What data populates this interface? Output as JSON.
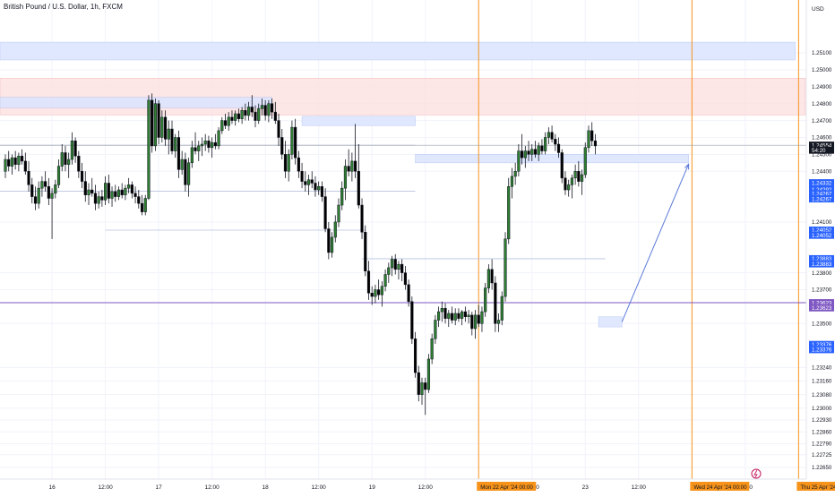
{
  "title": "British Pound / U.S. Dollar, 1h, FXCM",
  "currency": "USD",
  "colors": {
    "up_body": "#2e7d32",
    "down_body": "#000000",
    "grid": "#f0f3fa",
    "vertical_marker": "#f7931a",
    "blue_zone": "#dbe5ff",
    "red_zone": "#fde2e2",
    "level_line": "#b8c3e0",
    "purple_line": "#7e57c2",
    "price_label_blue": "#2962ff",
    "price_label_purple": "#7e57c2",
    "current_price_bg": "#131722"
  },
  "chart_data": {
    "type": "candlestick",
    "symbol": "GBPUSD",
    "timeframe": "1h",
    "ylim": [
      1.2266,
      1.2528
    ],
    "y_ticks": [
      "1.25100",
      "1.25000",
      "1.24900",
      "1.24800",
      "1.24700",
      "1.24600",
      "1.24500",
      "1.24400",
      "1.24100",
      "1.23800",
      "1.23700",
      "1.23500",
      "1.23240",
      "1.23160",
      "1.23080",
      "1.23000",
      "1.22930",
      "1.22860",
      "1.22790",
      "1.22725",
      "1.22650"
    ],
    "x_tick_labels": [
      {
        "bar": 14,
        "label": "16"
      },
      {
        "bar": 30,
        "label": "12:00"
      },
      {
        "bar": 46,
        "label": "17"
      },
      {
        "bar": 62,
        "label": "12:00"
      },
      {
        "bar": 78,
        "label": "18"
      },
      {
        "bar": 94,
        "label": "12:00"
      },
      {
        "bar": 110,
        "label": "19"
      },
      {
        "bar": 126,
        "label": "12:00"
      },
      {
        "bar": 158,
        "label": "12:00"
      },
      {
        "bar": 174,
        "label": "23"
      },
      {
        "bar": 190,
        "label": "12:00"
      },
      {
        "bar": 222,
        "label": "12:00"
      }
    ],
    "time_markers": [
      {
        "bar": 142,
        "label": "Mon 22 Apr '24   00:00"
      },
      {
        "bar": 206,
        "label": "Wed 24 Apr '24   00:00"
      },
      {
        "bar": 238,
        "label": "Thu 25 Apr '24   00:00"
      }
    ],
    "price_labels": [
      {
        "price": 1.24554,
        "label": "1.24554",
        "kind": "current"
      },
      {
        "price": 1.24525,
        "label": "54:20",
        "kind": "current"
      },
      {
        "price": 1.24332,
        "label": "1.24332",
        "kind": "blue"
      },
      {
        "price": 1.24292,
        "label": "1.24292",
        "kind": "blue"
      },
      {
        "price": 1.24267,
        "label": "1.24267",
        "kind": "blue"
      },
      {
        "price": 1.24237,
        "label": "1.24267",
        "kind": "blue"
      },
      {
        "price": 1.24052,
        "label": "1.24052",
        "kind": "blue"
      },
      {
        "price": 1.24022,
        "label": "1.24052",
        "kind": "blue"
      },
      {
        "price": 1.23883,
        "label": "1.23883",
        "kind": "blue"
      },
      {
        "price": 1.23853,
        "label": "1.23883",
        "kind": "blue"
      },
      {
        "price": 1.23623,
        "label": "1.23623",
        "kind": "purple"
      },
      {
        "price": 1.23593,
        "label": "1.23623",
        "kind": "purple"
      },
      {
        "price": 1.23376,
        "label": "1.23376",
        "kind": "blue"
      },
      {
        "price": 1.23346,
        "label": "1.23376",
        "kind": "blue"
      }
    ],
    "zones": [
      {
        "bar_from": 0,
        "bar_to": 237,
        "price_top": 1.25163,
        "price_bottom": 1.25058,
        "color": "blue"
      },
      {
        "bar_from": 0,
        "bar_to": 240,
        "price_top": 1.2495,
        "price_bottom": 1.24733,
        "color": "red"
      },
      {
        "bar_from": 0,
        "bar_to": 80,
        "price_top": 1.24837,
        "price_bottom": 1.24775,
        "color": "blue"
      },
      {
        "bar_from": 89,
        "bar_to": 123,
        "price_top": 1.24725,
        "price_bottom": 1.2467,
        "color": "blue"
      },
      {
        "bar_from": 123,
        "bar_to": 205,
        "price_top": 1.245,
        "price_bottom": 1.2445,
        "color": "blue"
      },
      {
        "bar_from": 178,
        "bar_to": 185,
        "price_top": 1.2354,
        "price_bottom": 1.2348,
        "color": "blue"
      }
    ],
    "levels": [
      {
        "bar_from": 0,
        "bar_to": 123,
        "price": 1.24554
      },
      {
        "bar_from": 0,
        "bar_to": 123,
        "price": 1.24282
      },
      {
        "bar_from": 30,
        "bar_to": 108,
        "price": 1.24052
      },
      {
        "bar_from": 107,
        "bar_to": 180,
        "price": 1.23883
      },
      {
        "bar_from": 0,
        "bar_to": 240,
        "price": 1.23623,
        "color": "purple"
      },
      {
        "bar_from": 0,
        "bar_to": 240,
        "price": 1.24554,
        "light": true
      }
    ],
    "arrow": {
      "from_bar": 185,
      "from_price": 1.2351,
      "to_bar": 205,
      "to_price": 1.24442
    },
    "ohlc": [
      [
        1.244,
        1.245,
        1.2436,
        1.2447
      ],
      [
        1.2447,
        1.2452,
        1.244,
        1.2443
      ],
      [
        1.2443,
        1.245,
        1.2438,
        1.2448
      ],
      [
        1.2448,
        1.2452,
        1.2441,
        1.2444
      ],
      [
        1.2444,
        1.2451,
        1.244,
        1.2449
      ],
      [
        1.2449,
        1.2453,
        1.2444,
        1.2446
      ],
      [
        1.2446,
        1.2451,
        1.2438,
        1.244
      ],
      [
        1.244,
        1.2446,
        1.2428,
        1.2432
      ],
      [
        1.2432,
        1.2436,
        1.2421,
        1.2425
      ],
      [
        1.2425,
        1.2431,
        1.2417,
        1.2421
      ],
      [
        1.2421,
        1.2434,
        1.2418,
        1.243
      ],
      [
        1.243,
        1.2437,
        1.2425,
        1.2434
      ],
      [
        1.2434,
        1.244,
        1.2428,
        1.2431
      ],
      [
        1.2431,
        1.2436,
        1.242,
        1.2424
      ],
      [
        1.2424,
        1.243,
        1.24,
        1.2427
      ],
      [
        1.2427,
        1.2435,
        1.2424,
        1.2432
      ],
      [
        1.2432,
        1.2447,
        1.243,
        1.2443
      ],
      [
        1.2443,
        1.2456,
        1.244,
        1.2451
      ],
      [
        1.2451,
        1.2455,
        1.244,
        1.2444
      ],
      [
        1.2444,
        1.2451,
        1.2436,
        1.2447
      ],
      [
        1.2447,
        1.2463,
        1.2444,
        1.2458
      ],
      [
        1.2458,
        1.246,
        1.2445,
        1.2449
      ],
      [
        1.2449,
        1.2452,
        1.2436,
        1.244
      ],
      [
        1.244,
        1.2445,
        1.243,
        1.2434
      ],
      [
        1.2434,
        1.244,
        1.2422,
        1.2426
      ],
      [
        1.2426,
        1.2433,
        1.242,
        1.2429
      ],
      [
        1.2429,
        1.2436,
        1.2425,
        1.2427
      ],
      [
        1.2427,
        1.2432,
        1.2417,
        1.2421
      ],
      [
        1.2421,
        1.2428,
        1.2418,
        1.2425
      ],
      [
        1.2425,
        1.2429,
        1.2419,
        1.2423
      ],
      [
        1.2423,
        1.2437,
        1.242,
        1.2433
      ],
      [
        1.2433,
        1.2438,
        1.2421,
        1.2424
      ],
      [
        1.2424,
        1.2431,
        1.2419,
        1.2428
      ],
      [
        1.2428,
        1.2432,
        1.2422,
        1.2425
      ],
      [
        1.2425,
        1.2431,
        1.2423,
        1.2429
      ],
      [
        1.2429,
        1.2433,
        1.2424,
        1.2426
      ],
      [
        1.2426,
        1.2432,
        1.2423,
        1.243
      ],
      [
        1.243,
        1.2436,
        1.2427,
        1.2432
      ],
      [
        1.2432,
        1.2434,
        1.2424,
        1.2427
      ],
      [
        1.2427,
        1.2431,
        1.2421,
        1.2425
      ],
      [
        1.2425,
        1.2429,
        1.2418,
        1.2421
      ],
      [
        1.2421,
        1.2426,
        1.2414,
        1.2416
      ],
      [
        1.2416,
        1.2426,
        1.2414,
        1.2424
      ],
      [
        1.2424,
        1.2485,
        1.2423,
        1.2482
      ],
      [
        1.2482,
        1.2486,
        1.2451,
        1.2455
      ],
      [
        1.2455,
        1.2483,
        1.2452,
        1.248
      ],
      [
        1.248,
        1.2482,
        1.2456,
        1.246
      ],
      [
        1.246,
        1.2476,
        1.2457,
        1.2472
      ],
      [
        1.2472,
        1.2476,
        1.2455,
        1.2459
      ],
      [
        1.2459,
        1.247,
        1.245,
        1.2465
      ],
      [
        1.2465,
        1.247,
        1.245,
        1.2452
      ],
      [
        1.2452,
        1.2462,
        1.2448,
        1.246
      ],
      [
        1.246,
        1.2464,
        1.2436,
        1.2441
      ],
      [
        1.2441,
        1.2452,
        1.2438,
        1.2447
      ],
      [
        1.2447,
        1.2451,
        1.2428,
        1.2432
      ],
      [
        1.2432,
        1.2448,
        1.2425,
        1.2445
      ],
      [
        1.2445,
        1.2458,
        1.2442,
        1.2454
      ],
      [
        1.2454,
        1.2463,
        1.245,
        1.2452
      ],
      [
        1.2452,
        1.2458,
        1.2446,
        1.2455
      ],
      [
        1.2455,
        1.246,
        1.2449,
        1.2456
      ],
      [
        1.2456,
        1.2462,
        1.2452,
        1.2458
      ],
      [
        1.2458,
        1.2461,
        1.2451,
        1.2454
      ],
      [
        1.2454,
        1.246,
        1.2448,
        1.2457
      ],
      [
        1.2457,
        1.2462,
        1.2453,
        1.2455
      ],
      [
        1.2455,
        1.2466,
        1.2453,
        1.2464
      ],
      [
        1.2464,
        1.2472,
        1.2462,
        1.247
      ],
      [
        1.247,
        1.2474,
        1.2465,
        1.2467
      ],
      [
        1.2467,
        1.2475,
        1.2464,
        1.2472
      ],
      [
        1.2472,
        1.2476,
        1.2468,
        1.247
      ],
      [
        1.247,
        1.2476,
        1.2467,
        1.2474
      ],
      [
        1.2474,
        1.2477,
        1.2469,
        1.2471
      ],
      [
        1.2471,
        1.2478,
        1.2468,
        1.2476
      ],
      [
        1.2476,
        1.248,
        1.247,
        1.2473
      ],
      [
        1.2473,
        1.2481,
        1.247,
        1.2478
      ],
      [
        1.2478,
        1.2485,
        1.2472,
        1.2475
      ],
      [
        1.2475,
        1.2479,
        1.2466,
        1.247
      ],
      [
        1.247,
        1.248,
        1.2468,
        1.2477
      ],
      [
        1.2477,
        1.2483,
        1.2473,
        1.2479
      ],
      [
        1.2479,
        1.2482,
        1.247,
        1.2473
      ],
      [
        1.2473,
        1.2482,
        1.2469,
        1.248
      ],
      [
        1.248,
        1.2483,
        1.2471,
        1.2475
      ],
      [
        1.2475,
        1.2481,
        1.2468,
        1.247
      ],
      [
        1.247,
        1.2474,
        1.2455,
        1.246
      ],
      [
        1.246,
        1.2465,
        1.2447,
        1.245
      ],
      [
        1.245,
        1.2458,
        1.2436,
        1.244
      ],
      [
        1.244,
        1.2453,
        1.2434,
        1.245
      ],
      [
        1.245,
        1.247,
        1.2447,
        1.2466
      ],
      [
        1.2466,
        1.2471,
        1.2444,
        1.2448
      ],
      [
        1.2448,
        1.2452,
        1.2436,
        1.244
      ],
      [
        1.244,
        1.2445,
        1.243,
        1.2434
      ],
      [
        1.2434,
        1.244,
        1.2428,
        1.2432
      ],
      [
        1.2432,
        1.2438,
        1.2426,
        1.2435
      ],
      [
        1.2435,
        1.244,
        1.243,
        1.2433
      ],
      [
        1.2433,
        1.2437,
        1.2425,
        1.2429
      ],
      [
        1.2429,
        1.2434,
        1.2426,
        1.2431
      ],
      [
        1.2431,
        1.2434,
        1.2422,
        1.2425
      ],
      [
        1.2425,
        1.243,
        1.2404,
        1.2406
      ],
      [
        1.2406,
        1.241,
        1.2388,
        1.2392
      ],
      [
        1.2392,
        1.2404,
        1.2389,
        1.2401
      ],
      [
        1.2401,
        1.2414,
        1.2398,
        1.241
      ],
      [
        1.241,
        1.2424,
        1.2407,
        1.242
      ],
      [
        1.242,
        1.2434,
        1.2417,
        1.243
      ],
      [
        1.243,
        1.2447,
        1.2423,
        1.2443
      ],
      [
        1.2443,
        1.2453,
        1.2437,
        1.244
      ],
      [
        1.244,
        1.2451,
        1.2434,
        1.2446
      ],
      [
        1.2446,
        1.2468,
        1.2436,
        1.244
      ],
      [
        1.244,
        1.2456,
        1.2418,
        1.242
      ],
      [
        1.242,
        1.2424,
        1.24,
        1.2404
      ],
      [
        1.2404,
        1.2408,
        1.2378,
        1.2381
      ],
      [
        1.2381,
        1.2387,
        1.2364,
        1.2368
      ],
      [
        1.2368,
        1.2372,
        1.2361,
        1.2366
      ],
      [
        1.2366,
        1.2373,
        1.2362,
        1.237
      ],
      [
        1.237,
        1.2376,
        1.2364,
        1.2367
      ],
      [
        1.2367,
        1.2375,
        1.236,
        1.2372
      ],
      [
        1.2372,
        1.2382,
        1.2369,
        1.2379
      ],
      [
        1.2379,
        1.2386,
        1.2374,
        1.2383
      ],
      [
        1.2383,
        1.239,
        1.2378,
        1.2388
      ],
      [
        1.2388,
        1.2391,
        1.2379,
        1.2382
      ],
      [
        1.2382,
        1.2387,
        1.2376,
        1.2385
      ],
      [
        1.2385,
        1.2388,
        1.2375,
        1.238
      ],
      [
        1.238,
        1.2384,
        1.237,
        1.2373
      ],
      [
        1.2373,
        1.2376,
        1.236,
        1.2363
      ],
      [
        1.2363,
        1.2366,
        1.2338,
        1.2341
      ],
      [
        1.2341,
        1.2345,
        1.2318,
        1.2321
      ],
      [
        1.2321,
        1.2325,
        1.2304,
        1.2308
      ],
      [
        1.2308,
        1.2318,
        1.2302,
        1.2315
      ],
      [
        1.2315,
        1.2318,
        1.2296,
        1.2311
      ],
      [
        1.2311,
        1.2332,
        1.2309,
        1.2329
      ],
      [
        1.2329,
        1.2344,
        1.2326,
        1.2341
      ],
      [
        1.2341,
        1.2355,
        1.2338,
        1.2352
      ],
      [
        1.2352,
        1.236,
        1.2348,
        1.2357
      ],
      [
        1.2357,
        1.2363,
        1.2351,
        1.2359
      ],
      [
        1.2359,
        1.2362,
        1.235,
        1.2353
      ],
      [
        1.2353,
        1.2358,
        1.2348,
        1.2356
      ],
      [
        1.2356,
        1.236,
        1.235,
        1.2352
      ],
      [
        1.2352,
        1.2359,
        1.2349,
        1.2356
      ],
      [
        1.2356,
        1.2359,
        1.2351,
        1.2353
      ],
      [
        1.2353,
        1.2358,
        1.2349,
        1.2357
      ],
      [
        1.2357,
        1.236,
        1.2351,
        1.2354
      ],
      [
        1.2354,
        1.2358,
        1.235,
        1.2355
      ],
      [
        1.2355,
        1.2357,
        1.2343,
        1.2347
      ],
      [
        1.2347,
        1.2358,
        1.2341,
        1.2355
      ],
      [
        1.2355,
        1.2361,
        1.2348,
        1.235
      ],
      [
        1.235,
        1.236,
        1.2345,
        1.2357
      ],
      [
        1.2357,
        1.2374,
        1.2354,
        1.2371
      ],
      [
        1.2371,
        1.2385,
        1.2368,
        1.2382
      ],
      [
        1.2382,
        1.2388,
        1.237,
        1.2374
      ],
      [
        1.2374,
        1.2378,
        1.2345,
        1.235
      ],
      [
        1.235,
        1.2356,
        1.2345,
        1.2352
      ],
      [
        1.2352,
        1.2369,
        1.2349,
        1.2366
      ],
      [
        1.2366,
        1.2404,
        1.2363,
        1.24
      ],
      [
        1.24,
        1.2436,
        1.2397,
        1.2431
      ],
      [
        1.2431,
        1.2442,
        1.2424,
        1.2437
      ],
      [
        1.2437,
        1.2445,
        1.2432,
        1.244
      ],
      [
        1.244,
        1.2456,
        1.2437,
        1.2452
      ],
      [
        1.2452,
        1.2462,
        1.2444,
        1.2448
      ],
      [
        1.2448,
        1.2455,
        1.2442,
        1.2452
      ],
      [
        1.2452,
        1.2458,
        1.2446,
        1.245
      ],
      [
        1.245,
        1.2456,
        1.2446,
        1.2453
      ],
      [
        1.2453,
        1.2458,
        1.2448,
        1.245
      ],
      [
        1.245,
        1.2457,
        1.2446,
        1.2455
      ],
      [
        1.2455,
        1.2459,
        1.245,
        1.2452
      ],
      [
        1.2452,
        1.2463,
        1.245,
        1.246
      ],
      [
        1.246,
        1.2466,
        1.2456,
        1.2463
      ],
      [
        1.2463,
        1.2467,
        1.2457,
        1.2459
      ],
      [
        1.2459,
        1.2462,
        1.2452,
        1.2456
      ],
      [
        1.2456,
        1.246,
        1.2448,
        1.2451
      ],
      [
        1.2451,
        1.2453,
        1.2433,
        1.2436
      ],
      [
        1.2436,
        1.244,
        1.2426,
        1.2429
      ],
      [
        1.2429,
        1.2435,
        1.2425,
        1.2432
      ],
      [
        1.2432,
        1.2438,
        1.2424,
        1.2436
      ],
      [
        1.2436,
        1.2444,
        1.2432,
        1.244
      ],
      [
        1.244,
        1.2446,
        1.2431,
        1.2434
      ],
      [
        1.2434,
        1.2441,
        1.2426,
        1.2438
      ],
      [
        1.2438,
        1.2457,
        1.2436,
        1.2454
      ],
      [
        1.2454,
        1.2467,
        1.2451,
        1.2464
      ],
      [
        1.2464,
        1.2469,
        1.2455,
        1.2458
      ],
      [
        1.2458,
        1.2462,
        1.245,
        1.2455
      ]
    ]
  }
}
